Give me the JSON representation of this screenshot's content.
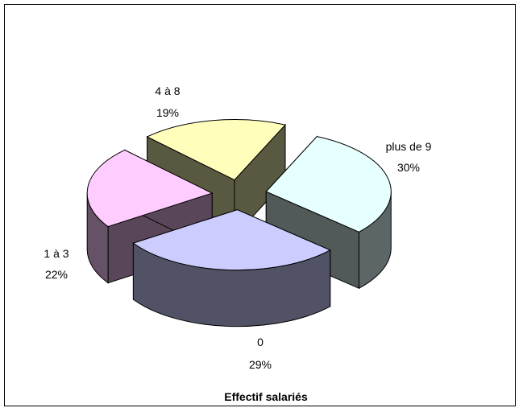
{
  "chart_data": {
    "type": "pie",
    "style": "3d-exploded",
    "title": "Effectif salariés",
    "slices": [
      {
        "label": "plus de 9",
        "percent_label": "30%",
        "value": 30,
        "color": "#E6FFFF"
      },
      {
        "label": "0",
        "percent_label": "29%",
        "value": 29,
        "color": "#CCCCFF"
      },
      {
        "label": "1 à 3",
        "percent_label": "22%",
        "value": 22,
        "color": "#FFCCFF"
      },
      {
        "label": "4 à 8",
        "percent_label": "19%",
        "value": 19,
        "color": "#FFFFBB"
      }
    ],
    "legend": "none"
  }
}
